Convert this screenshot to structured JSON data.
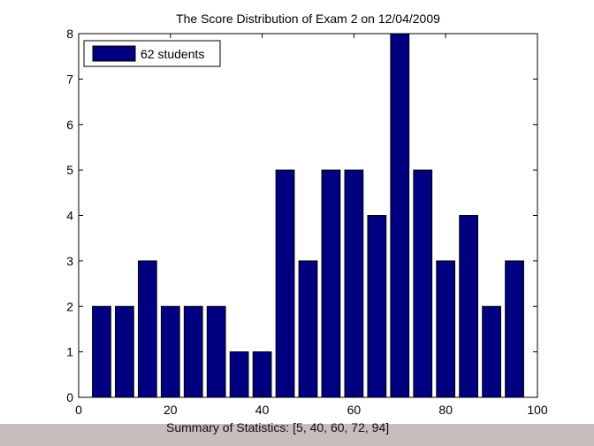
{
  "chart_data": {
    "type": "bar",
    "title": "The Score Distribution of Exam 2 on 12/04/2009",
    "xlabel": "Summary of Statistics: [5, 40, 60, 72, 94]",
    "ylabel": "",
    "x": [
      5,
      10,
      15,
      20,
      25,
      30,
      35,
      40,
      45,
      50,
      55,
      60,
      65,
      70,
      75,
      80,
      85,
      90,
      95
    ],
    "values": [
      2,
      2,
      3,
      2,
      2,
      2,
      1,
      1,
      5,
      3,
      5,
      5,
      4,
      8,
      5,
      3,
      4,
      2,
      3
    ],
    "bar_width": 4,
    "xlim": [
      0,
      100
    ],
    "ylim": [
      0,
      8
    ],
    "xticks": [
      0,
      20,
      40,
      60,
      80,
      100
    ],
    "yticks": [
      0,
      1,
      2,
      3,
      4,
      5,
      6,
      7,
      8
    ],
    "legend": {
      "label": "62 students",
      "placement": "top-left"
    },
    "bar_color": "#000080",
    "grid": false
  }
}
